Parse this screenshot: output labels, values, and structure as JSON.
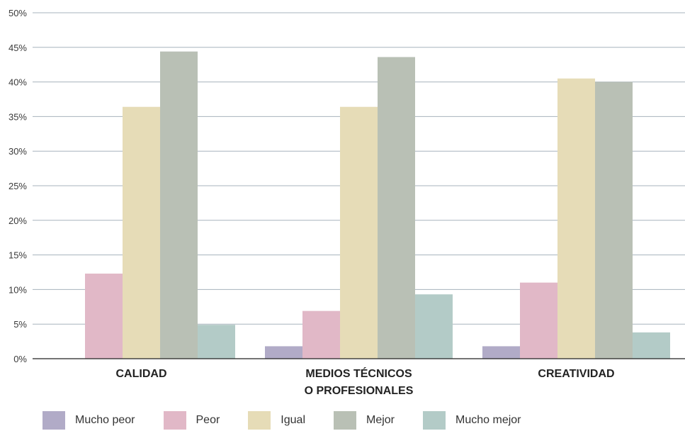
{
  "chart_data": {
    "type": "bar",
    "categories": [
      [
        "CALIDAD"
      ],
      [
        "MEDIOS TÉCNICOS",
        "O PROFESIONALES"
      ],
      [
        "CREATIVIDAD"
      ]
    ],
    "series": [
      {
        "name": "Mucho peor",
        "color": "#b1abc7",
        "values": [
          0,
          1.8,
          1.8
        ]
      },
      {
        "name": "Peor",
        "color": "#e1b8c7",
        "values": [
          12.3,
          6.9,
          11.0
        ]
      },
      {
        "name": "Igual",
        "color": "#e6dcb7",
        "values": [
          36.4,
          36.4,
          40.5
        ]
      },
      {
        "name": "Mejor",
        "color": "#b9c0b5",
        "values": [
          44.4,
          43.6,
          40.0
        ]
      },
      {
        "name": "Mucho mejor",
        "color": "#b3cbc7",
        "values": [
          4.9,
          9.3,
          3.8
        ]
      }
    ],
    "yticks": [
      "0%",
      "5%",
      "10%",
      "15%",
      "20%",
      "25%",
      "30%",
      "35%",
      "40%",
      "45%",
      "50%"
    ],
    "ylim": [
      0,
      50
    ],
    "grid": true,
    "legend_position": "bottom"
  }
}
